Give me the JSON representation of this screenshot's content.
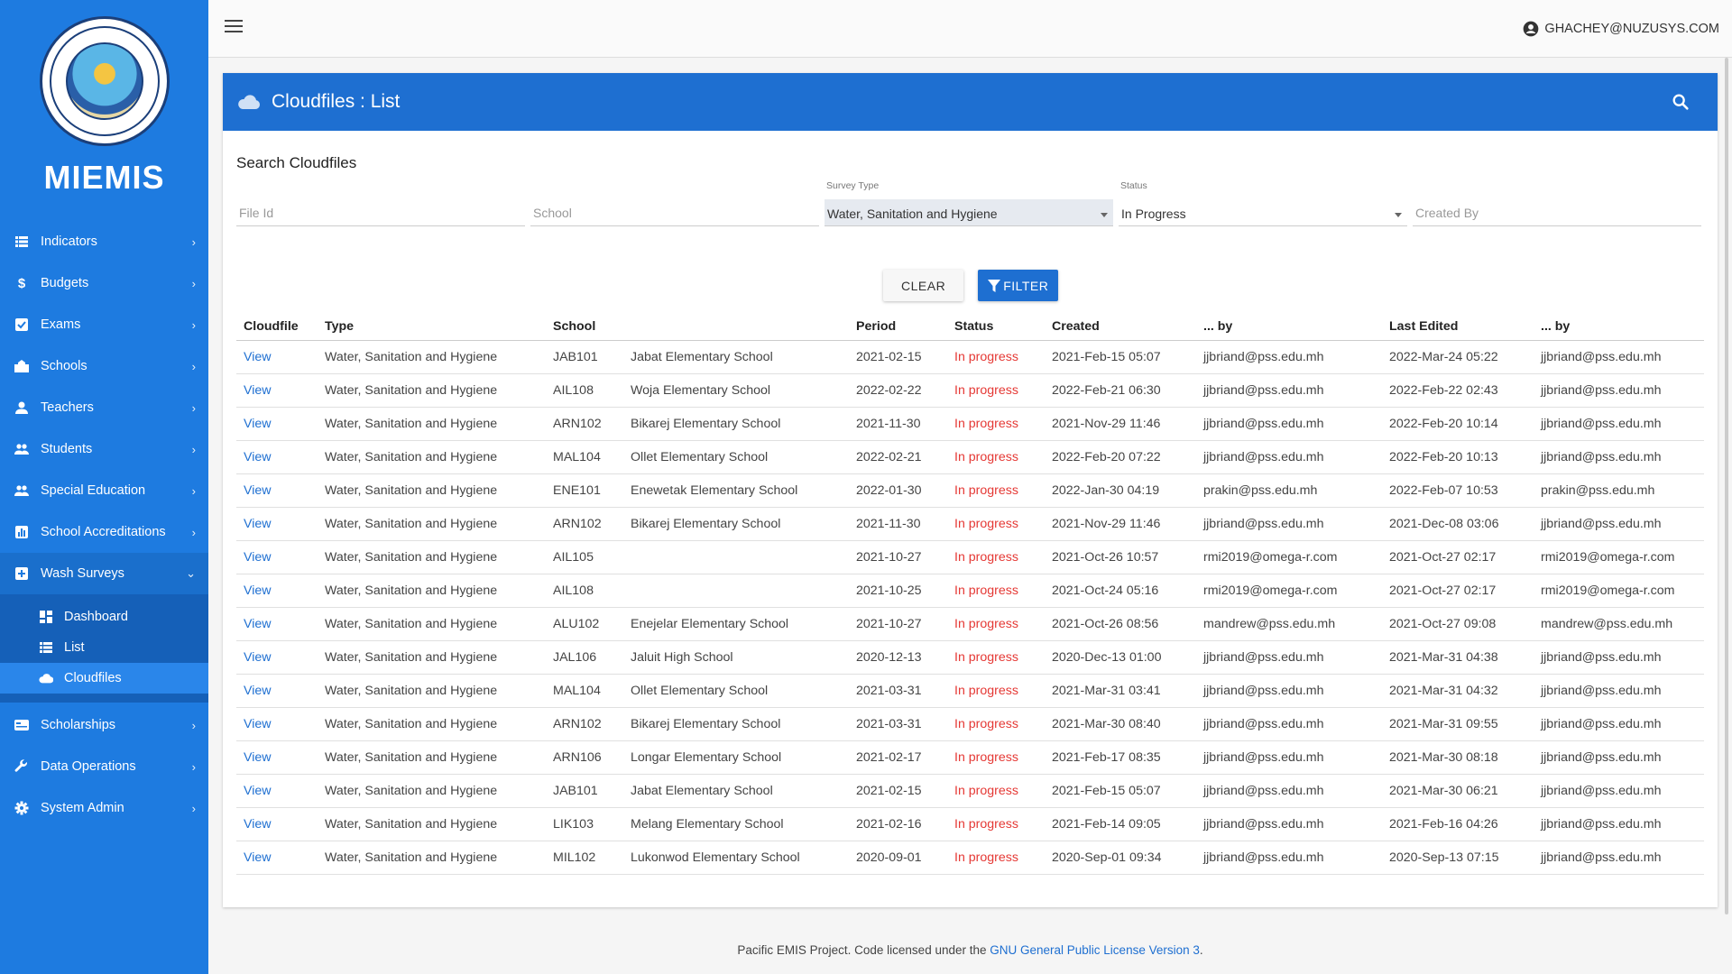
{
  "app": {
    "title": "MIEMIS"
  },
  "topbar": {
    "user": "GHACHEY@NUZUSYS.COM"
  },
  "sidebar": {
    "items": [
      {
        "label": "Indicators",
        "icon": "list-icon"
      },
      {
        "label": "Budgets",
        "icon": "dollar-icon"
      },
      {
        "label": "Exams",
        "icon": "check-box-icon"
      },
      {
        "label": "Schools",
        "icon": "school-icon"
      },
      {
        "label": "Teachers",
        "icon": "person-icon"
      },
      {
        "label": "Students",
        "icon": "people-icon"
      },
      {
        "label": "Special Education",
        "icon": "people-icon"
      },
      {
        "label": "School Accreditations",
        "icon": "chart-icon"
      },
      {
        "label": "Wash Surveys",
        "icon": "plus-box-icon"
      }
    ],
    "sub_items": [
      {
        "label": "Dashboard",
        "icon": "dashboard-icon"
      },
      {
        "label": "List",
        "icon": "list-icon"
      },
      {
        "label": "Cloudfiles",
        "icon": "cloud-icon"
      }
    ],
    "items_after": [
      {
        "label": "Scholarships",
        "icon": "card-icon"
      },
      {
        "label": "Data Operations",
        "icon": "wrench-icon"
      },
      {
        "label": "System Admin",
        "icon": "gear-icon"
      }
    ]
  },
  "card": {
    "title": "Cloudfiles : List",
    "section_title": "Search Cloudfiles"
  },
  "filters": {
    "file_id_placeholder": "File Id",
    "school_placeholder": "School",
    "survey_type_label": "Survey Type",
    "survey_type_value": "Water, Sanitation and Hygiene",
    "status_label": "Status",
    "status_value": "In Progress",
    "created_by_placeholder": "Created By"
  },
  "buttons": {
    "clear": "CLEAR",
    "filter": "FILTER"
  },
  "table": {
    "headers": [
      "Cloudfile",
      "Type",
      "School",
      "",
      "Period",
      "Status",
      "Created",
      "... by",
      "Last Edited",
      "... by"
    ],
    "rows": [
      [
        "View",
        "Water, Sanitation and Hygiene",
        "JAB101",
        "Jabat Elementary School",
        "2021-02-15",
        "In progress",
        "2021-Feb-15 05:07",
        "jjbriand@pss.edu.mh",
        "2022-Mar-24 05:22",
        "jjbriand@pss.edu.mh"
      ],
      [
        "View",
        "Water, Sanitation and Hygiene",
        "AIL108",
        "Woja Elementary School",
        "2022-02-22",
        "In progress",
        "2022-Feb-21 06:30",
        "jjbriand@pss.edu.mh",
        "2022-Feb-22 02:43",
        "jjbriand@pss.edu.mh"
      ],
      [
        "View",
        "Water, Sanitation and Hygiene",
        "ARN102",
        "Bikarej Elementary School",
        "2021-11-30",
        "In progress",
        "2021-Nov-29 11:46",
        "jjbriand@pss.edu.mh",
        "2022-Feb-20 10:14",
        "jjbriand@pss.edu.mh"
      ],
      [
        "View",
        "Water, Sanitation and Hygiene",
        "MAL104",
        "Ollet Elementary School",
        "2022-02-21",
        "In progress",
        "2022-Feb-20 07:22",
        "jjbriand@pss.edu.mh",
        "2022-Feb-20 10:13",
        "jjbriand@pss.edu.mh"
      ],
      [
        "View",
        "Water, Sanitation and Hygiene",
        "ENE101",
        "Enewetak Elementary School",
        "2022-01-30",
        "In progress",
        "2022-Jan-30 04:19",
        "prakin@pss.edu.mh",
        "2022-Feb-07 10:53",
        "prakin@pss.edu.mh"
      ],
      [
        "View",
        "Water, Sanitation and Hygiene",
        "ARN102",
        "Bikarej Elementary School",
        "2021-11-30",
        "In progress",
        "2021-Nov-29 11:46",
        "jjbriand@pss.edu.mh",
        "2021-Dec-08 03:06",
        "jjbriand@pss.edu.mh"
      ],
      [
        "View",
        "Water, Sanitation and Hygiene",
        "AIL105",
        "",
        "2021-10-27",
        "In progress",
        "2021-Oct-26 10:57",
        "rmi2019@omega-r.com",
        "2021-Oct-27 02:17",
        "rmi2019@omega-r.com"
      ],
      [
        "View",
        "Water, Sanitation and Hygiene",
        "AIL108",
        "",
        "2021-10-25",
        "In progress",
        "2021-Oct-24 05:16",
        "rmi2019@omega-r.com",
        "2021-Oct-27 02:17",
        "rmi2019@omega-r.com"
      ],
      [
        "View",
        "Water, Sanitation and Hygiene",
        "ALU102",
        "Enejelar Elementary School",
        "2021-10-27",
        "In progress",
        "2021-Oct-26 08:56",
        "mandrew@pss.edu.mh",
        "2021-Oct-27 09:08",
        "mandrew@pss.edu.mh"
      ],
      [
        "View",
        "Water, Sanitation and Hygiene",
        "JAL106",
        "Jaluit High School",
        "2020-12-13",
        "In progress",
        "2020-Dec-13 01:00",
        "jjbriand@pss.edu.mh",
        "2021-Mar-31 04:38",
        "jjbriand@pss.edu.mh"
      ],
      [
        "View",
        "Water, Sanitation and Hygiene",
        "MAL104",
        "Ollet Elementary School",
        "2021-03-31",
        "In progress",
        "2021-Mar-31 03:41",
        "jjbriand@pss.edu.mh",
        "2021-Mar-31 04:32",
        "jjbriand@pss.edu.mh"
      ],
      [
        "View",
        "Water, Sanitation and Hygiene",
        "ARN102",
        "Bikarej Elementary School",
        "2021-03-31",
        "In progress",
        "2021-Mar-30 08:40",
        "jjbriand@pss.edu.mh",
        "2021-Mar-31 09:55",
        "jjbriand@pss.edu.mh"
      ],
      [
        "View",
        "Water, Sanitation and Hygiene",
        "ARN106",
        "Longar Elementary School",
        "2021-02-17",
        "In progress",
        "2021-Feb-17 08:35",
        "jjbriand@pss.edu.mh",
        "2021-Mar-30 08:18",
        "jjbriand@pss.edu.mh"
      ],
      [
        "View",
        "Water, Sanitation and Hygiene",
        "JAB101",
        "Jabat Elementary School",
        "2021-02-15",
        "In progress",
        "2021-Feb-15 05:07",
        "jjbriand@pss.edu.mh",
        "2021-Mar-30 06:21",
        "jjbriand@pss.edu.mh"
      ],
      [
        "View",
        "Water, Sanitation and Hygiene",
        "LIK103",
        "Melang Elementary School",
        "2021-02-16",
        "In progress",
        "2021-Feb-14 09:05",
        "jjbriand@pss.edu.mh",
        "2021-Feb-16 04:26",
        "jjbriand@pss.edu.mh"
      ],
      [
        "View",
        "Water, Sanitation and Hygiene",
        "MIL102",
        "Lukonwod Elementary School",
        "2020-09-01",
        "In progress",
        "2020-Sep-01 09:34",
        "jjbriand@pss.edu.mh",
        "2020-Sep-13 07:15",
        "jjbriand@pss.edu.mh"
      ]
    ]
  },
  "footer": {
    "text": "Pacific EMIS Project. Code licensed under the ",
    "link": "GNU General Public License Version 3",
    "end": "."
  },
  "colors": {
    "primary": "#1e6fd1",
    "sidebar": "#1e7be0",
    "status_red": "#e53935"
  }
}
